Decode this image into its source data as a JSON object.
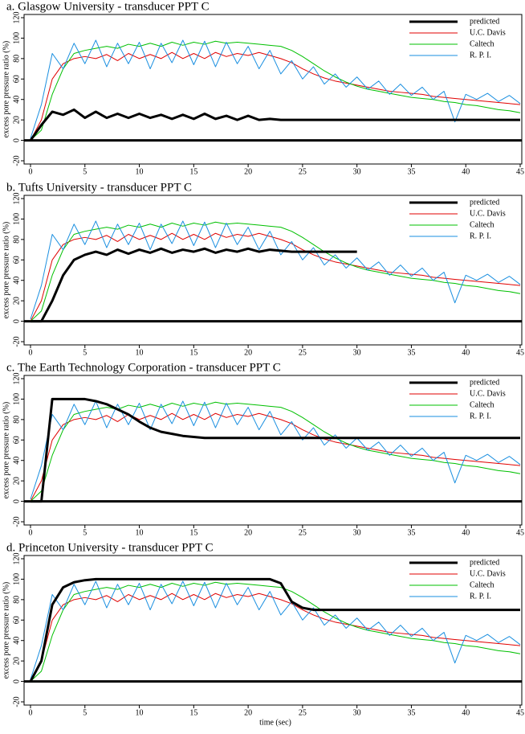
{
  "chart_data": [
    {
      "type": "line",
      "title": "a. Glasgow University - transducer PPT C",
      "ylabel": "excess pore pressure ratio (%)",
      "x": [
        0,
        1,
        2,
        3,
        4,
        5,
        6,
        7,
        8,
        9,
        10,
        11,
        12,
        13,
        14,
        15,
        16,
        17,
        18,
        19,
        20,
        21,
        22,
        23,
        24,
        25,
        26,
        27,
        28,
        29,
        30,
        31,
        32,
        33,
        34,
        35,
        36,
        37,
        38,
        39,
        40,
        41,
        42,
        43,
        44,
        45
      ],
      "xlim": [
        0,
        45
      ],
      "ylim": [
        -20,
        120
      ],
      "xticks": [
        0,
        5,
        10,
        15,
        20,
        25,
        30,
        35,
        40,
        45
      ],
      "yticks": [
        -20,
        0,
        20,
        40,
        60,
        80,
        100,
        120
      ],
      "legend": "upper right",
      "series": [
        {
          "name": "predicted",
          "color": "#000000",
          "values": [
            0,
            15,
            28,
            25,
            30,
            22,
            28,
            22,
            26,
            22,
            26,
            22,
            25,
            21,
            25,
            21,
            26,
            21,
            24,
            20,
            24,
            20,
            21,
            20,
            20,
            20,
            20,
            20,
            20,
            20,
            20,
            20,
            20,
            20,
            20,
            20,
            20,
            20,
            20,
            20,
            20,
            20,
            20,
            20,
            20,
            20
          ]
        },
        {
          "name": "U.C. Davis",
          "color": "#e00000",
          "values": [
            0,
            20,
            60,
            75,
            80,
            82,
            80,
            84,
            78,
            85,
            80,
            84,
            80,
            86,
            80,
            85,
            80,
            86,
            82,
            85,
            83,
            86,
            83,
            80,
            76,
            70,
            65,
            61,
            58,
            56,
            54,
            52,
            50,
            48,
            47,
            46,
            45,
            43,
            42,
            41,
            40,
            39,
            38,
            37,
            36,
            35
          ]
        },
        {
          "name": "Caltech",
          "color": "#00c000",
          "values": [
            0,
            10,
            45,
            70,
            85,
            88,
            90,
            92,
            90,
            94,
            92,
            95,
            92,
            96,
            93,
            96,
            94,
            97,
            95,
            96,
            95,
            94,
            93,
            92,
            88,
            82,
            75,
            68,
            62,
            57,
            53,
            50,
            48,
            46,
            44,
            42,
            41,
            40,
            38,
            37,
            35,
            34,
            32,
            30,
            29,
            27
          ]
        },
        {
          "name": "R. P. I.",
          "color": "#1a8fe0",
          "values": [
            2,
            35,
            85,
            70,
            95,
            75,
            98,
            72,
            95,
            75,
            96,
            70,
            95,
            76,
            98,
            74,
            97,
            72,
            96,
            75,
            92,
            70,
            88,
            65,
            78,
            60,
            72,
            55,
            65,
            52,
            62,
            50,
            58,
            45,
            55,
            44,
            52,
            40,
            48,
            18,
            45,
            40,
            46,
            38,
            44,
            36
          ]
        }
      ]
    },
    {
      "type": "line",
      "title": "b. Tufts University - transducer PPT C",
      "ylabel": "excess pore pressure ratio (%)",
      "x": [
        0,
        1,
        2,
        3,
        4,
        5,
        6,
        7,
        8,
        9,
        10,
        11,
        12,
        13,
        14,
        15,
        16,
        17,
        18,
        19,
        20,
        21,
        22,
        23,
        24,
        25,
        26,
        27,
        28,
        29,
        30,
        31,
        32,
        33,
        34,
        35,
        36,
        37,
        38,
        39,
        40,
        41,
        42,
        43,
        44,
        45
      ],
      "xlim": [
        0,
        45
      ],
      "ylim": [
        -20,
        120
      ],
      "xticks": [
        0,
        5,
        10,
        15,
        20,
        25,
        30,
        35,
        40,
        45
      ],
      "yticks": [
        -20,
        0,
        20,
        40,
        60,
        80,
        100,
        120
      ],
      "legend": "upper right",
      "series": [
        {
          "name": "predicted",
          "color": "#000000",
          "values": [
            0,
            0,
            20,
            45,
            60,
            65,
            68,
            65,
            70,
            66,
            70,
            67,
            71,
            67,
            70,
            68,
            71,
            67,
            70,
            68,
            71,
            68,
            70,
            69,
            68,
            68,
            68,
            68,
            68,
            68,
            68,
            null,
            null,
            null,
            null,
            null,
            null,
            null,
            null,
            null,
            null,
            null,
            null,
            null,
            null,
            null
          ]
        },
        {
          "name": "U.C. Davis",
          "color": "#e00000",
          "values": [
            0,
            20,
            60,
            75,
            80,
            82,
            80,
            84,
            78,
            85,
            80,
            84,
            80,
            86,
            80,
            85,
            80,
            86,
            82,
            85,
            83,
            86,
            83,
            80,
            76,
            70,
            65,
            61,
            58,
            56,
            54,
            52,
            50,
            48,
            47,
            46,
            45,
            43,
            42,
            41,
            40,
            39,
            38,
            37,
            36,
            35
          ]
        },
        {
          "name": "Caltech",
          "color": "#00c000",
          "values": [
            0,
            10,
            45,
            70,
            85,
            88,
            90,
            92,
            90,
            94,
            92,
            95,
            92,
            96,
            93,
            96,
            94,
            97,
            95,
            96,
            95,
            94,
            93,
            92,
            88,
            82,
            75,
            68,
            62,
            57,
            53,
            50,
            48,
            46,
            44,
            42,
            41,
            40,
            38,
            37,
            35,
            34,
            32,
            30,
            29,
            27
          ]
        },
        {
          "name": "R. P. I.",
          "color": "#1a8fe0",
          "values": [
            2,
            35,
            85,
            70,
            95,
            75,
            98,
            72,
            95,
            75,
            96,
            70,
            95,
            76,
            98,
            74,
            97,
            72,
            96,
            75,
            92,
            70,
            88,
            65,
            78,
            60,
            72,
            55,
            65,
            52,
            62,
            50,
            58,
            45,
            55,
            44,
            52,
            40,
            48,
            18,
            45,
            40,
            46,
            38,
            44,
            36
          ]
        }
      ]
    },
    {
      "type": "line",
      "title": "c. The Earth Technology Corporation - transducer PPT C",
      "ylabel": "excess pore pressure ratio (%)",
      "x": [
        0,
        1,
        2,
        3,
        4,
        5,
        6,
        7,
        8,
        9,
        10,
        11,
        12,
        13,
        14,
        15,
        16,
        17,
        18,
        19,
        20,
        21,
        22,
        23,
        24,
        25,
        26,
        27,
        28,
        29,
        30,
        31,
        32,
        33,
        34,
        35,
        36,
        37,
        38,
        39,
        40,
        41,
        42,
        43,
        44,
        45
      ],
      "xlim": [
        0,
        45
      ],
      "ylim": [
        -20,
        120
      ],
      "xticks": [
        0,
        5,
        10,
        15,
        20,
        25,
        30,
        35,
        40,
        45
      ],
      "yticks": [
        -20,
        0,
        20,
        40,
        60,
        80,
        100,
        120
      ],
      "legend": "upper right",
      "series": [
        {
          "name": "predicted",
          "color": "#000000",
          "values": [
            0,
            0,
            100,
            100,
            100,
            100,
            98,
            95,
            90,
            85,
            78,
            72,
            68,
            66,
            64,
            63,
            62,
            62,
            62,
            62,
            62,
            62,
            62,
            62,
            62,
            62,
            62,
            62,
            62,
            62,
            62,
            62,
            62,
            62,
            62,
            62,
            62,
            62,
            62,
            62,
            62,
            62,
            62,
            62,
            62,
            62
          ]
        },
        {
          "name": "U.C. Davis",
          "color": "#e00000",
          "values": [
            0,
            20,
            60,
            75,
            80,
            82,
            80,
            84,
            78,
            85,
            80,
            84,
            80,
            86,
            80,
            85,
            80,
            86,
            82,
            85,
            83,
            86,
            83,
            80,
            76,
            70,
            65,
            61,
            58,
            56,
            54,
            52,
            50,
            48,
            47,
            46,
            45,
            43,
            42,
            41,
            40,
            39,
            38,
            37,
            36,
            35
          ]
        },
        {
          "name": "Caltech",
          "color": "#00c000",
          "values": [
            0,
            10,
            45,
            70,
            85,
            88,
            90,
            92,
            90,
            94,
            92,
            95,
            92,
            96,
            93,
            96,
            94,
            97,
            95,
            96,
            95,
            94,
            93,
            92,
            88,
            82,
            75,
            68,
            62,
            57,
            53,
            50,
            48,
            46,
            44,
            42,
            41,
            40,
            38,
            37,
            35,
            34,
            32,
            30,
            29,
            27
          ]
        },
        {
          "name": "R. P. I.",
          "color": "#1a8fe0",
          "values": [
            2,
            35,
            85,
            70,
            95,
            75,
            98,
            72,
            95,
            75,
            96,
            70,
            95,
            76,
            98,
            74,
            97,
            72,
            96,
            75,
            92,
            70,
            88,
            65,
            78,
            60,
            72,
            55,
            65,
            52,
            62,
            50,
            58,
            45,
            55,
            44,
            52,
            40,
            48,
            18,
            45,
            40,
            46,
            38,
            44,
            36
          ]
        }
      ]
    },
    {
      "type": "line",
      "title": "d. Princeton University - transducer PPT C",
      "ylabel": "excess pore pressure ratio (%)",
      "xlabel": "time (sec)",
      "x": [
        0,
        1,
        2,
        3,
        4,
        5,
        6,
        7,
        8,
        9,
        10,
        11,
        12,
        13,
        14,
        15,
        16,
        17,
        18,
        19,
        20,
        21,
        22,
        23,
        24,
        25,
        26,
        27,
        28,
        29,
        30,
        31,
        32,
        33,
        34,
        35,
        36,
        37,
        38,
        39,
        40,
        41,
        42,
        43,
        44,
        45
      ],
      "xlim": [
        0,
        45
      ],
      "ylim": [
        -20,
        120
      ],
      "xticks": [
        0,
        5,
        10,
        15,
        20,
        25,
        30,
        35,
        40,
        45
      ],
      "yticks": [
        -20,
        0,
        20,
        40,
        60,
        80,
        100,
        120
      ],
      "legend": "upper right",
      "series": [
        {
          "name": "predicted",
          "color": "#000000",
          "values": [
            0,
            20,
            75,
            92,
            97,
            99,
            100,
            100,
            100,
            100,
            100,
            100,
            100,
            100,
            100,
            100,
            100,
            100,
            100,
            100,
            100,
            100,
            100,
            96,
            78,
            72,
            70,
            70,
            70,
            70,
            70,
            70,
            70,
            70,
            70,
            70,
            70,
            70,
            70,
            70,
            70,
            70,
            70,
            70,
            70,
            70
          ]
        },
        {
          "name": "U.C. Davis",
          "color": "#e00000",
          "values": [
            0,
            20,
            60,
            75,
            80,
            82,
            80,
            84,
            78,
            85,
            80,
            84,
            80,
            86,
            80,
            85,
            80,
            86,
            82,
            85,
            83,
            86,
            83,
            80,
            76,
            70,
            65,
            61,
            58,
            56,
            54,
            52,
            50,
            48,
            47,
            46,
            45,
            43,
            42,
            41,
            40,
            39,
            38,
            37,
            36,
            35
          ]
        },
        {
          "name": "Caltech",
          "color": "#00c000",
          "values": [
            0,
            10,
            45,
            70,
            85,
            88,
            90,
            92,
            90,
            94,
            92,
            95,
            92,
            96,
            93,
            96,
            94,
            97,
            95,
            96,
            95,
            94,
            93,
            92,
            88,
            82,
            75,
            68,
            62,
            57,
            53,
            50,
            48,
            46,
            44,
            42,
            41,
            40,
            38,
            37,
            35,
            34,
            32,
            30,
            29,
            27
          ]
        },
        {
          "name": "R. P. I.",
          "color": "#1a8fe0",
          "values": [
            2,
            35,
            85,
            70,
            95,
            75,
            98,
            72,
            95,
            75,
            96,
            70,
            95,
            76,
            98,
            74,
            97,
            72,
            96,
            75,
            92,
            70,
            88,
            65,
            78,
            60,
            72,
            55,
            65,
            52,
            62,
            50,
            58,
            45,
            55,
            44,
            52,
            40,
            48,
            18,
            45,
            40,
            46,
            38,
            44,
            36
          ]
        }
      ]
    }
  ]
}
